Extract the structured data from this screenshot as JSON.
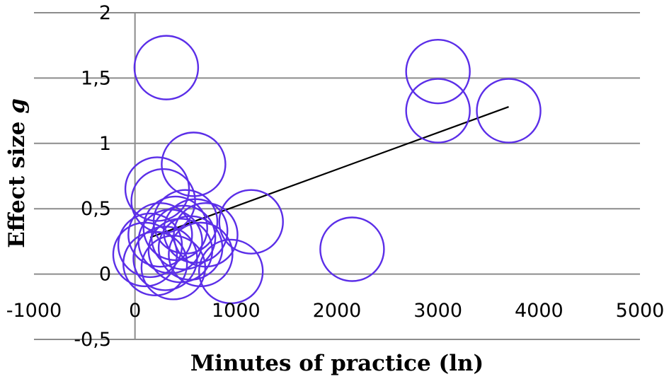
{
  "chart_data": {
    "type": "scatter",
    "title": "",
    "xlabel": "Minutes of practice (ln)",
    "ylabel_main": "Effect size ",
    "ylabel_italic": "g",
    "xlim": [
      -1000,
      5000
    ],
    "ylim": [
      -0.5,
      2
    ],
    "x_ticks": [
      -1000,
      0,
      1000,
      2000,
      3000,
      4000,
      5000
    ],
    "x_tick_labels": [
      "-1000",
      "0",
      "1000",
      "2000",
      "3000",
      "4000",
      "5000"
    ],
    "y_ticks": [
      -0.5,
      0,
      0.5,
      1,
      1.5,
      2
    ],
    "y_tick_labels": [
      "-0,5",
      "0",
      "0,5",
      "1",
      "1,5",
      "2"
    ],
    "grid": "horizontal",
    "marker_color": "#5b2ee8",
    "trendline_color": "#000000",
    "points": [
      {
        "x": 310,
        "y": 1.58
      },
      {
        "x": 3000,
        "y": 1.55
      },
      {
        "x": 3000,
        "y": 1.25
      },
      {
        "x": 3700,
        "y": 1.25
      },
      {
        "x": 580,
        "y": 0.84
      },
      {
        "x": 220,
        "y": 0.65
      },
      {
        "x": 280,
        "y": 0.56
      },
      {
        "x": 1150,
        "y": 0.4
      },
      {
        "x": 2150,
        "y": 0.19
      },
      {
        "x": 500,
        "y": 0.4
      },
      {
        "x": 600,
        "y": 0.33
      },
      {
        "x": 400,
        "y": 0.35
      },
      {
        "x": 250,
        "y": 0.3
      },
      {
        "x": 150,
        "y": 0.22
      },
      {
        "x": 350,
        "y": 0.25
      },
      {
        "x": 450,
        "y": 0.18
      },
      {
        "x": 300,
        "y": 0.12
      },
      {
        "x": 200,
        "y": 0.08
      },
      {
        "x": 550,
        "y": 0.2
      },
      {
        "x": 650,
        "y": 0.15
      },
      {
        "x": 100,
        "y": 0.15
      },
      {
        "x": 380,
        "y": 0.05
      },
      {
        "x": 950,
        "y": 0.02
      },
      {
        "x": 480,
        "y": 0.28
      },
      {
        "x": 700,
        "y": 0.3
      }
    ],
    "trendline": {
      "x": [
        150,
        3700
      ],
      "y": [
        0.28,
        1.28
      ]
    }
  }
}
